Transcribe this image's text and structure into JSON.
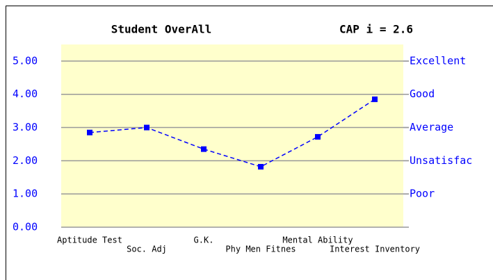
{
  "chart_data": {
    "type": "line",
    "title": "Student OverAll",
    "annotation": "CAP i = 2.6",
    "categories": [
      "Aptitude Test",
      "Soc. Adj",
      "G.K.",
      "Phy Men Fitnes",
      "Mental Ability",
      "Interest Inventory"
    ],
    "series": [
      {
        "name": "Student OverAll",
        "color": "#0000ff",
        "values": [
          2.85,
          3.0,
          2.35,
          1.82,
          2.72,
          3.85
        ]
      }
    ],
    "ylim": [
      0,
      5.5
    ],
    "yticks": [
      {
        "value": 0,
        "label": "0.00"
      },
      {
        "value": 1,
        "label": "1.00"
      },
      {
        "value": 2,
        "label": "2.00"
      },
      {
        "value": 3,
        "label": "3.00"
      },
      {
        "value": 4,
        "label": "4.00"
      },
      {
        "value": 5,
        "label": "5.00"
      }
    ],
    "y2lim": [
      0,
      5.5
    ],
    "y2ticks": [
      {
        "value": 1,
        "label": "Poor"
      },
      {
        "value": 2,
        "label": "Unsatisfac"
      },
      {
        "value": 3,
        "label": "Average"
      },
      {
        "value": 4,
        "label": "Good"
      },
      {
        "value": 5,
        "label": "Excellent"
      }
    ],
    "grid": true,
    "plot_background": "#ffffcc"
  }
}
